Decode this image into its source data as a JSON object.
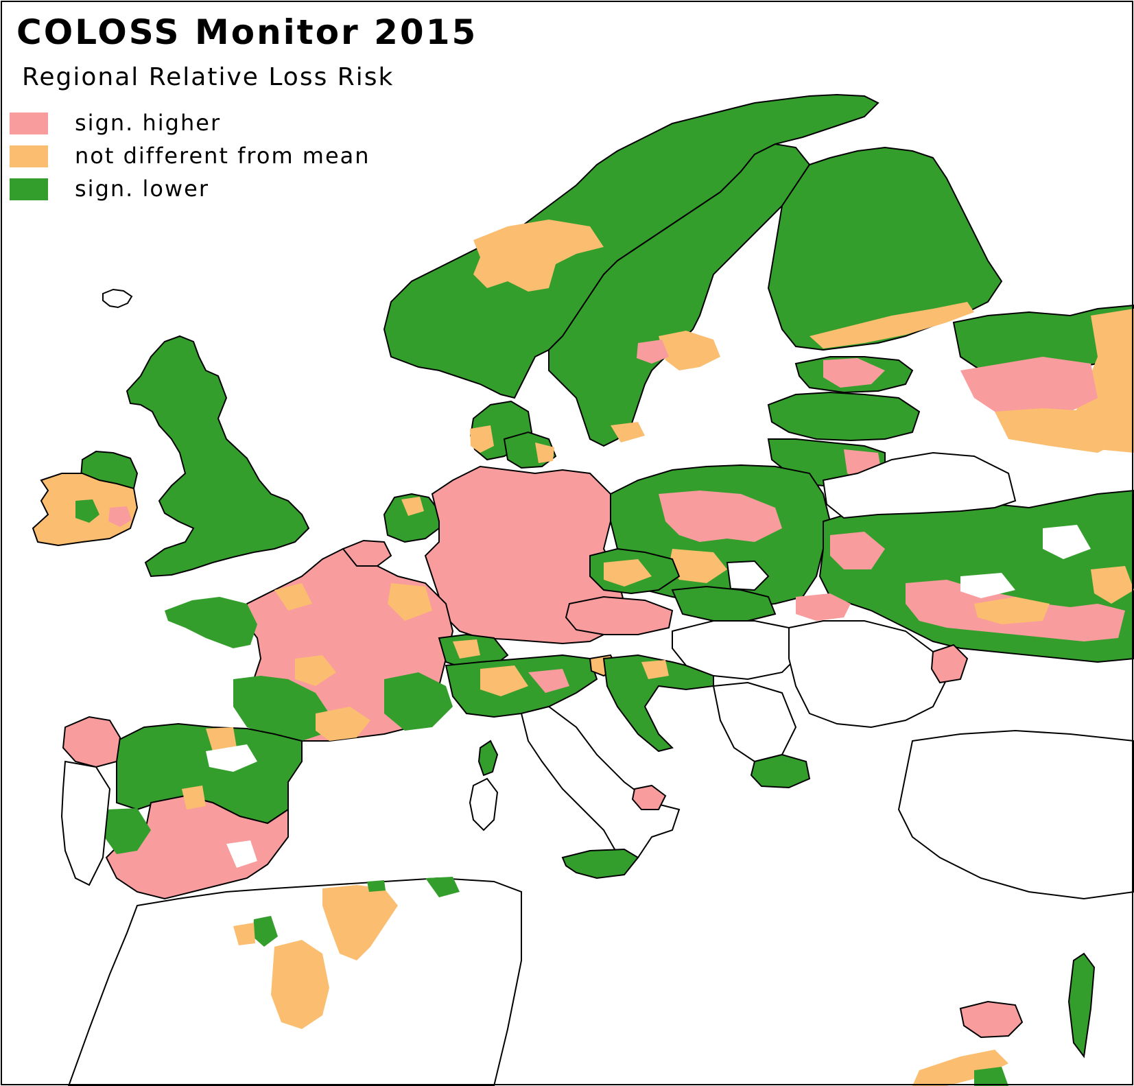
{
  "title": "COLOSS Monitor 2015",
  "subtitle": "Regional Relative Loss Risk",
  "colors": {
    "higher": "#f99c9e",
    "mean": "#fbbd6f",
    "lower": "#349e2c",
    "nodata": "#ffffff",
    "border": "#000000"
  },
  "legend": [
    {
      "key": "higher",
      "label": "sign. higher",
      "color": "#f99c9e"
    },
    {
      "key": "mean",
      "label": "not different from mean",
      "color": "#fbbd6f"
    },
    {
      "key": "lower",
      "label": "sign. lower",
      "color": "#349e2c"
    }
  ]
}
